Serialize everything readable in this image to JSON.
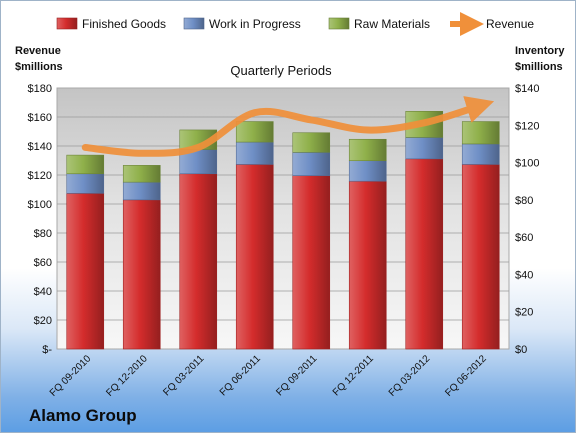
{
  "company": "Alamo Group",
  "chart_data": {
    "type": "bar",
    "stacked": true,
    "title": "Quarterly Periods",
    "y_left_label_lines": [
      "Revenue",
      "$millions"
    ],
    "y_right_label_lines": [
      "Inventory",
      "$millions"
    ],
    "categories": [
      "FQ 09-2010",
      "FQ 12-2010",
      "FQ 03-2011",
      "FQ 06-2011",
      "FQ 09-2011",
      "FQ 12-2011",
      "FQ 03-2012",
      "FQ 06-2012"
    ],
    "ylim_left": [
      0,
      180
    ],
    "ylim_right": [
      0,
      140
    ],
    "y_left_ticks": [
      "$-",
      "$20",
      "$40",
      "$60",
      "$80",
      "$100",
      "$120",
      "$140",
      "$160",
      "$180"
    ],
    "y_right_ticks": [
      "$0",
      "$20",
      "$40",
      "$60",
      "$80",
      "$100",
      "$120",
      "$140"
    ],
    "series": [
      {
        "name": "Finished Goods",
        "axis": "right",
        "color": "#d42c2c",
        "values": [
          83.5,
          80,
          94,
          99,
          93,
          90,
          102,
          99
        ]
      },
      {
        "name": "Work in Progress",
        "axis": "right",
        "color": "#6f8fc6",
        "values": [
          10.5,
          9.5,
          13,
          12,
          12.5,
          11,
          11.5,
          11
        ]
      },
      {
        "name": "Raw Materials",
        "axis": "right",
        "color": "#8fb04a",
        "values": [
          10,
          9,
          10.5,
          11,
          10.5,
          11.5,
          14,
          12
        ]
      },
      {
        "name": "Revenue",
        "axis": "left",
        "type": "line",
        "color": "#f0903a",
        "values": [
          139,
          135,
          139,
          163,
          158,
          151,
          156,
          168
        ]
      }
    ],
    "grid": true,
    "legend_position": "top"
  }
}
